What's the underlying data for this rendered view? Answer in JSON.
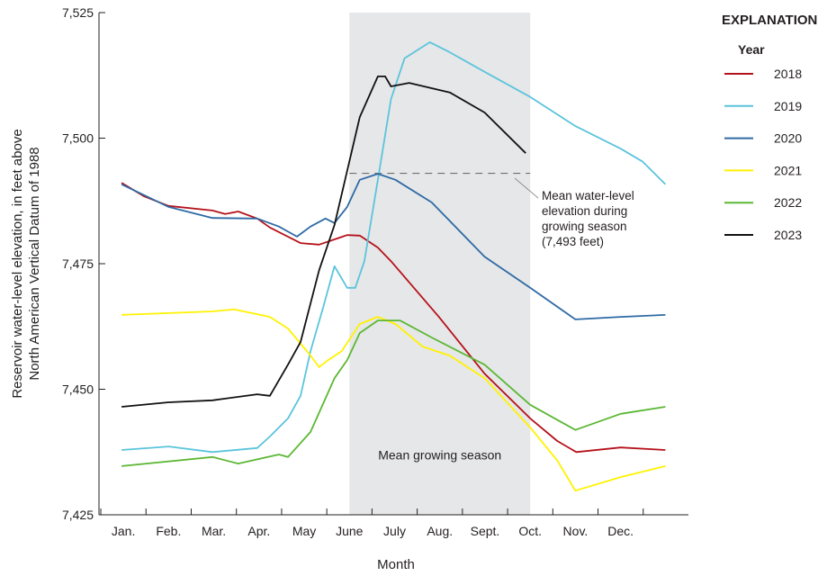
{
  "chart_data": {
    "type": "line",
    "xlabel": "Month",
    "ylabel": [
      "Reservoir water-level elevation, in feet above",
      "North American Vertical Datum of 1988"
    ],
    "x_tick_labels": [
      "Jan.",
      "Feb.",
      "Mar.",
      "Apr.",
      "May",
      "June",
      "July",
      "Aug.",
      "Sept.",
      "Oct.",
      "Nov.",
      "Dec."
    ],
    "y_ticks": [
      7425,
      7450,
      7475,
      7500,
      7525
    ],
    "y_tick_labels": [
      "7,425",
      "7,450",
      "7,475",
      "7,500",
      "7,525"
    ],
    "xlim": [
      0.46,
      13.5
    ],
    "ylim": [
      7425,
      7525
    ],
    "grid": false,
    "legend": {
      "title": "EXPLANATION",
      "subtitle": "Year",
      "placement": "right"
    },
    "shaded_region": {
      "label": "Mean growing season",
      "from": 6,
      "to": 10,
      "color": "#e6e7e8"
    },
    "mean_line": {
      "value": 7493,
      "from": 6,
      "to": 10,
      "label": [
        "Mean water-level",
        "elevation during",
        "growing season",
        "(7,493 feet)"
      ]
    },
    "series": [
      {
        "name": "2018",
        "color": "#b5121b",
        "points": [
          [
            0.96,
            7491.1
          ],
          [
            1.46,
            7488.4
          ],
          [
            2.0,
            7486.5
          ],
          [
            2.97,
            7485.6
          ],
          [
            3.25,
            7484.9
          ],
          [
            3.54,
            7485.4
          ],
          [
            3.96,
            7484.0
          ],
          [
            4.24,
            7482.2
          ],
          [
            4.92,
            7479.1
          ],
          [
            5.33,
            7478.8
          ],
          [
            5.95,
            7480.7
          ],
          [
            6.23,
            7480.6
          ],
          [
            6.63,
            7478.2
          ],
          [
            6.92,
            7475.5
          ],
          [
            7.98,
            7464.4
          ],
          [
            8.99,
            7453.1
          ],
          [
            10.0,
            7444.2
          ],
          [
            10.6,
            7439.7
          ],
          [
            11.02,
            7437.5
          ],
          [
            12.0,
            7438.4
          ],
          [
            12.99,
            7437.9
          ]
        ]
      },
      {
        "name": "2019",
        "color": "#5bc4dc",
        "points": [
          [
            0.96,
            7437.9
          ],
          [
            2.0,
            7438.6
          ],
          [
            2.97,
            7437.5
          ],
          [
            3.96,
            7438.3
          ],
          [
            4.24,
            7440.6
          ],
          [
            4.64,
            7444.2
          ],
          [
            4.92,
            7448.7
          ],
          [
            5.14,
            7457.6
          ],
          [
            5.43,
            7466.6
          ],
          [
            5.67,
            7474.5
          ],
          [
            5.95,
            7470.2
          ],
          [
            6.13,
            7470.2
          ],
          [
            6.33,
            7475.5
          ],
          [
            6.63,
            7491.7
          ],
          [
            6.92,
            7507.8
          ],
          [
            7.22,
            7515.9
          ],
          [
            7.78,
            7519.1
          ],
          [
            8.22,
            7517.1
          ],
          [
            8.99,
            7513.2
          ],
          [
            10.0,
            7508.2
          ],
          [
            11.0,
            7502.4
          ],
          [
            12.0,
            7497.9
          ],
          [
            12.49,
            7495.3
          ],
          [
            12.99,
            7490.8
          ]
        ]
      },
      {
        "name": "2020",
        "color": "#2e6aa5",
        "points": [
          [
            0.96,
            7490.8
          ],
          [
            2.0,
            7486.3
          ],
          [
            2.97,
            7484.1
          ],
          [
            3.96,
            7484.0
          ],
          [
            4.44,
            7482.4
          ],
          [
            4.84,
            7480.4
          ],
          [
            5.14,
            7482.4
          ],
          [
            5.47,
            7484.0
          ],
          [
            5.67,
            7483.1
          ],
          [
            5.95,
            7486.3
          ],
          [
            6.23,
            7491.7
          ],
          [
            6.63,
            7492.9
          ],
          [
            7.02,
            7491.7
          ],
          [
            7.82,
            7487.2
          ],
          [
            8.99,
            7476.4
          ],
          [
            10.0,
            7470.2
          ],
          [
            11.0,
            7463.9
          ],
          [
            12.0,
            7464.4
          ],
          [
            12.99,
            7464.8
          ]
        ]
      },
      {
        "name": "2021",
        "color": "#fff200",
        "points": [
          [
            0.96,
            7464.8
          ],
          [
            2.97,
            7465.5
          ],
          [
            3.45,
            7465.9
          ],
          [
            4.24,
            7464.4
          ],
          [
            4.64,
            7462.1
          ],
          [
            5.14,
            7456.7
          ],
          [
            5.33,
            7454.4
          ],
          [
            5.53,
            7455.8
          ],
          [
            5.83,
            7457.6
          ],
          [
            6.23,
            7463.0
          ],
          [
            6.63,
            7464.4
          ],
          [
            7.02,
            7463.0
          ],
          [
            7.62,
            7458.5
          ],
          [
            8.22,
            7456.7
          ],
          [
            8.99,
            7452.2
          ],
          [
            10.0,
            7442.4
          ],
          [
            10.6,
            7435.8
          ],
          [
            11.0,
            7429.8
          ],
          [
            12.0,
            7432.5
          ],
          [
            12.99,
            7434.7
          ]
        ]
      },
      {
        "name": "2022",
        "color": "#5cb734",
        "points": [
          [
            0.96,
            7434.7
          ],
          [
            2.97,
            7436.5
          ],
          [
            3.54,
            7435.2
          ],
          [
            4.44,
            7437.0
          ],
          [
            4.64,
            7436.5
          ],
          [
            5.14,
            7441.5
          ],
          [
            5.67,
            7452.2
          ],
          [
            5.95,
            7455.8
          ],
          [
            6.23,
            7461.2
          ],
          [
            6.63,
            7463.7
          ],
          [
            7.12,
            7463.7
          ],
          [
            7.82,
            7460.3
          ],
          [
            8.99,
            7454.9
          ],
          [
            10.0,
            7446.9
          ],
          [
            11.0,
            7441.9
          ],
          [
            12.0,
            7445.1
          ],
          [
            12.99,
            7446.5
          ]
        ]
      },
      {
        "name": "2023",
        "color": "#111111",
        "points": [
          [
            0.96,
            7446.5
          ],
          [
            2.0,
            7447.4
          ],
          [
            2.97,
            7447.8
          ],
          [
            3.96,
            7449.0
          ],
          [
            4.24,
            7448.7
          ],
          [
            4.64,
            7454.9
          ],
          [
            4.92,
            7459.4
          ],
          [
            5.33,
            7473.7
          ],
          [
            5.67,
            7482.7
          ],
          [
            5.95,
            7493.5
          ],
          [
            6.23,
            7504.2
          ],
          [
            6.63,
            7512.3
          ],
          [
            6.79,
            7512.3
          ],
          [
            6.92,
            7510.3
          ],
          [
            7.32,
            7511.0
          ],
          [
            8.22,
            7509.1
          ],
          [
            8.99,
            7505.1
          ],
          [
            9.9,
            7497.0
          ]
        ]
      }
    ]
  }
}
